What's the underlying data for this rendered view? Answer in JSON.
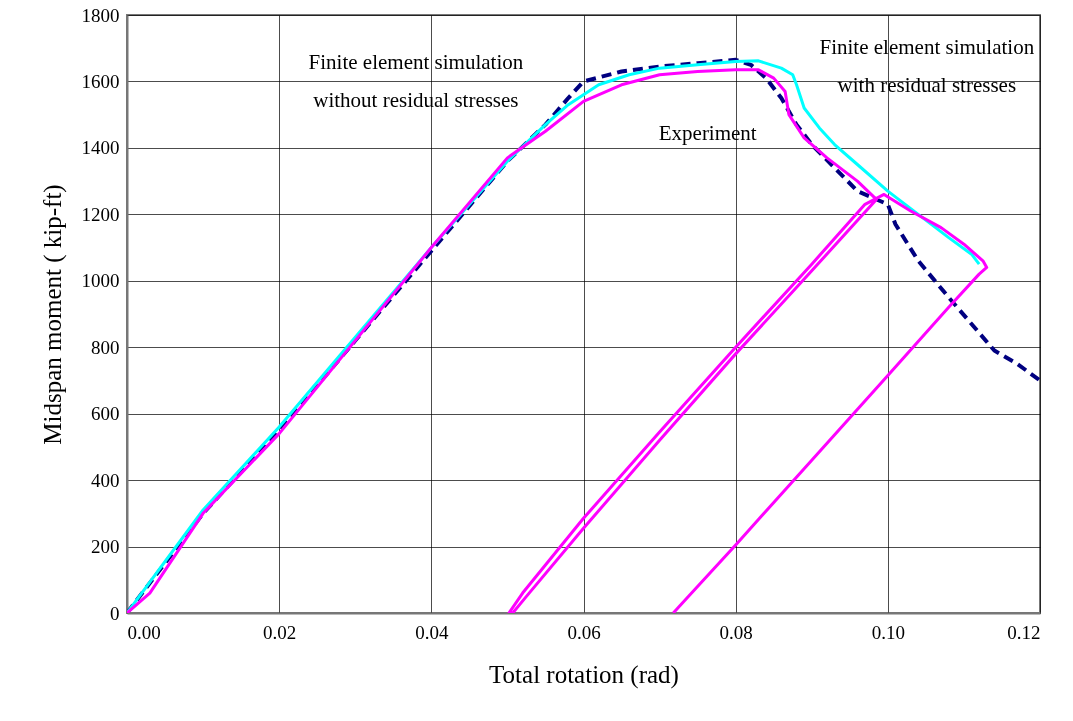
{
  "chart_data": {
    "type": "line",
    "xlabel": "Total rotation (rad)",
    "ylabel": "Midspan moment ( kip-ft)",
    "xlim": [
      0,
      0.12
    ],
    "xticks": [
      {
        "value": 0,
        "label": "0.00"
      },
      {
        "value": 0.02,
        "label": "0.02"
      },
      {
        "value": 0.04,
        "label": "0.04"
      },
      {
        "value": 0.06,
        "label": "0.06"
      },
      {
        "value": 0.08,
        "label": "0.08"
      },
      {
        "value": 0.1,
        "label": "0.10"
      },
      {
        "value": 0.12,
        "label": "0.12"
      }
    ],
    "ylim": [
      0,
      1800
    ],
    "yticks": [
      0,
      200,
      400,
      600,
      800,
      1000,
      1200,
      1400,
      1600,
      1800
    ],
    "grid": true,
    "marker": "none",
    "series": [
      {
        "color": "#000080",
        "line_style": "dashed",
        "x": [
          0,
          0.01,
          0.02,
          0.03,
          0.04,
          0.05,
          0.055,
          0.058,
          0.06,
          0.065,
          0.07,
          0.075,
          0.08,
          0.082,
          0.084,
          0.086,
          0.088,
          0.09,
          0.093,
          0.096,
          0.1,
          0.101,
          0.104,
          0.108,
          0.111,
          0.114,
          0.117,
          0.12
        ],
        "values": [
          0,
          300,
          550,
          820,
          1090,
          1360,
          1470,
          1550,
          1600,
          1630,
          1645,
          1655,
          1665,
          1650,
          1610,
          1550,
          1470,
          1410,
          1340,
          1270,
          1230,
          1170,
          1060,
          950,
          870,
          790,
          750,
          700
        ]
      },
      {
        "color": "#00ffff",
        "line_style": "solid",
        "x": [
          0,
          0.01,
          0.02,
          0.03,
          0.04,
          0.05,
          0.055,
          0.058,
          0.062,
          0.066,
          0.07,
          0.075,
          0.08,
          0.083,
          0.086,
          0.0875,
          0.088,
          0.089,
          0.091,
          0.093,
          0.096,
          0.1,
          0.104,
          0.108,
          0.111,
          0.112
        ],
        "values": [
          0,
          310,
          560,
          830,
          1100,
          1360,
          1470,
          1530,
          1590,
          1620,
          1640,
          1650,
          1660,
          1662,
          1640,
          1620,
          1590,
          1520,
          1460,
          1410,
          1350,
          1270,
          1200,
          1130,
          1080,
          1050
        ]
      },
      {
        "color": "#ff00ff",
        "line_style": "solid",
        "x": [
          0,
          0.003,
          0.01,
          0.02,
          0.03,
          0.04,
          0.05,
          0.055,
          0.06,
          0.065,
          0.07,
          0.075,
          0.08,
          0.083,
          0.085,
          0.0865,
          0.087,
          0.089,
          0.092,
          0.096,
          0.0985,
          0.09,
          0.08,
          0.07,
          0.06,
          0.0525,
          0.0507,
          0.0502,
          0.052,
          0.06,
          0.07,
          0.08,
          0.09,
          0.097,
          0.0995,
          0.103,
          0.107,
          0.11,
          0.1125,
          0.113,
          0.112,
          0.108,
          0.1,
          0.09,
          0.08,
          0.073,
          0.0718
        ],
        "values": [
          0,
          60,
          300,
          540,
          820,
          1100,
          1370,
          1450,
          1540,
          1590,
          1620,
          1630,
          1635,
          1635,
          1610,
          1570,
          1500,
          1430,
          1370,
          1300,
          1245,
          1030,
          780,
          520,
          255,
          50,
          0,
          0,
          60,
          285,
          545,
          800,
          1050,
          1230,
          1260,
          1210,
          1160,
          1110,
          1060,
          1040,
          1020,
          920,
          715,
          460,
          205,
          30,
          0
        ]
      }
    ],
    "annotations": [
      {
        "text": "Finite element simulation\nwithout residual stresses",
        "x": 0.059,
        "y": 1560
      },
      {
        "text": "Experiment",
        "x": 0.062,
        "y": 1545
      },
      {
        "text": "Finite element simulation\nwith residual stresses",
        "x": 0.0883,
        "y": 1620
      }
    ]
  }
}
